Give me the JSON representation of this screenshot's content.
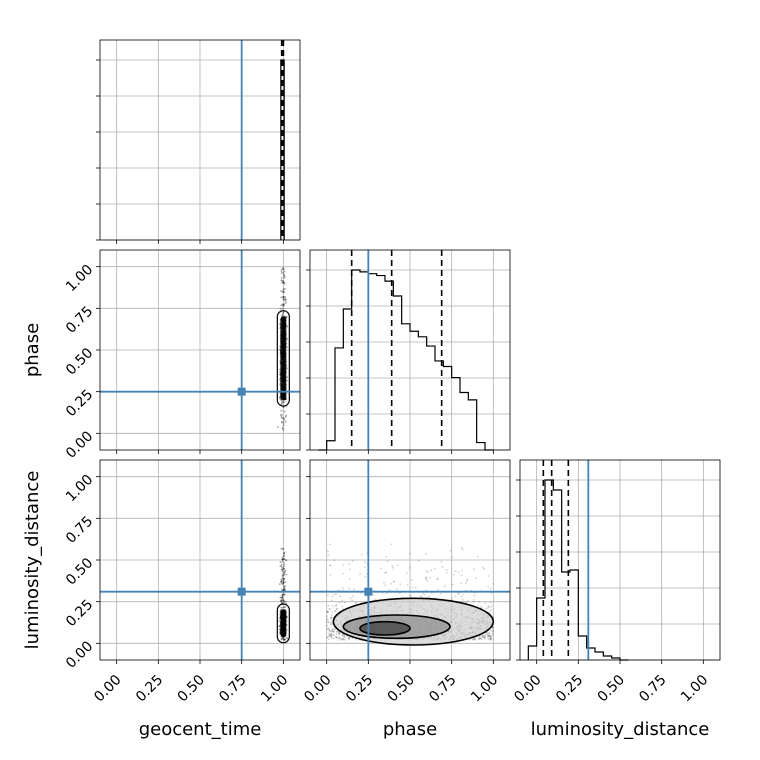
{
  "chart_data": {
    "type": "corner",
    "parameters": [
      "geocent_time",
      "phase",
      "luminosity_distance"
    ],
    "axis_labels": {
      "x": [
        "geocent_time",
        "phase",
        "luminosity_distance"
      ],
      "y": [
        "phase",
        "luminosity_distance"
      ]
    },
    "tick_labels": [
      "0.00",
      "0.25",
      "0.50",
      "0.75",
      "1.00"
    ],
    "axis_range": [
      -0.1,
      1.1
    ],
    "grid": true,
    "truths": {
      "geocent_time": 0.75,
      "phase": 0.25,
      "luminosity_distance": 0.31
    },
    "truth_color": "#4682b4",
    "histogram_color": "#000000",
    "quantiles": {
      "geocent_time": [
        0.99,
        1.0,
        1.0
      ],
      "phase": [
        0.15,
        0.39,
        0.69
      ],
      "luminosity_distance": [
        0.04,
        0.09,
        0.19
      ]
    },
    "histograms": {
      "geocent_time": {
        "bin_edges": [
          0.985,
          1.005
        ],
        "counts": [
          1.0
        ]
      },
      "phase": {
        "bin_edges": [
          -0.05,
          0.0,
          0.05,
          0.1,
          0.15,
          0.2,
          0.25,
          0.3,
          0.35,
          0.4,
          0.45,
          0.5,
          0.55,
          0.6,
          0.65,
          0.7,
          0.75,
          0.8,
          0.85,
          0.9,
          0.95,
          1.0
        ],
        "counts": [
          0.0,
          0.05,
          0.55,
          0.76,
          0.97,
          0.96,
          0.95,
          0.94,
          0.91,
          0.83,
          0.68,
          0.64,
          0.61,
          0.56,
          0.48,
          0.45,
          0.39,
          0.31,
          0.27,
          0.04,
          0.0
        ]
      },
      "luminosity_distance": {
        "bin_edges": [
          -0.05,
          0.0,
          0.05,
          0.1,
          0.15,
          0.2,
          0.25,
          0.3,
          0.35,
          0.4,
          0.45,
          0.5,
          0.55
        ],
        "counts": [
          0.07,
          0.31,
          0.9,
          0.85,
          0.44,
          0.45,
          0.12,
          0.06,
          0.04,
          0.02,
          0.01,
          0.0
        ]
      }
    },
    "scatter_2d": [
      {
        "x": "geocent_time",
        "y": "phase",
        "x_center": 1.0,
        "x_spread": 0.008,
        "y_range": [
          0.02,
          1.0
        ],
        "y_core": [
          0.2,
          0.7
        ]
      },
      {
        "x": "geocent_time",
        "y": "luminosity_distance",
        "x_center": 1.0,
        "x_spread": 0.008,
        "y_range": [
          0.0,
          0.57
        ],
        "y_core": [
          0.04,
          0.2
        ]
      },
      {
        "x": "phase",
        "y": "luminosity_distance",
        "x_range": [
          0.0,
          1.0
        ],
        "y_range": [
          0.0,
          0.6
        ],
        "contours": [
          {
            "cx": 0.52,
            "cy": 0.13,
            "rx": 0.48,
            "ry": 0.14
          },
          {
            "cx": 0.42,
            "cy": 0.1,
            "rx": 0.32,
            "ry": 0.07
          },
          {
            "cx": 0.35,
            "cy": 0.09,
            "rx": 0.15,
            "ry": 0.04
          }
        ]
      }
    ]
  }
}
